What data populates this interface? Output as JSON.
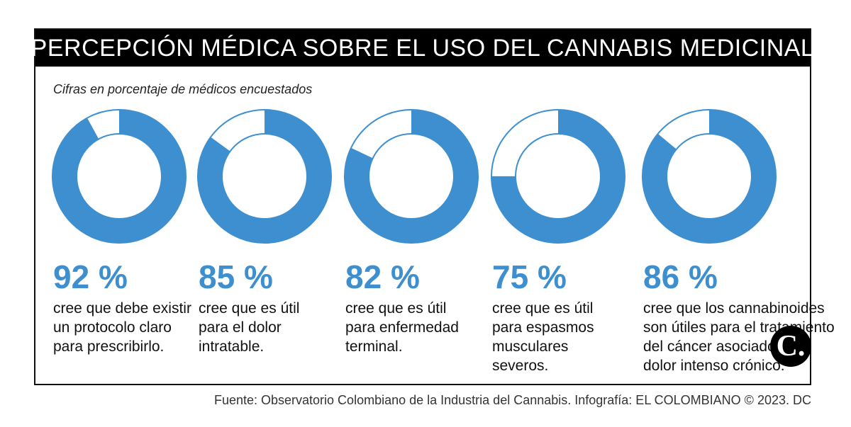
{
  "title": "PERCEPCIÓN MÉDICA SOBRE EL USO DEL CANNABIS MEDICINAL",
  "subtitle": "Cifras en porcentaje de médicos encuestados",
  "source": "Fuente: Observatorio Colombiano de la Industria del Cannabis. Infografía: EL COLOMBIANO © 2023. DC",
  "logo_text": "C.",
  "colors": {
    "ring": "#3d8fcf",
    "remainder": "#ffffff",
    "title_bg": "#000000"
  },
  "chart_data": {
    "type": "pie",
    "variant": "donut",
    "categories": [
      "cree que debe existir un protocolo claro para prescribirlo.",
      "cree que es útil para el dolor intratable.",
      "cree que es útil para enfermedad terminal.",
      "cree que es útil para espasmos musculares severos.",
      "cree que los cannabinoides son útiles para el tratamiento del cáncer asociado con dolor intenso crónico."
    ],
    "values": [
      92,
      85,
      82,
      75,
      86
    ],
    "labels": [
      "92 %",
      "85 %",
      "82 %",
      "75 %",
      "86 %"
    ],
    "descriptions": [
      [
        "cree que debe existir",
        "un protocolo claro",
        "para prescribirlo."
      ],
      [
        "cree que es útil",
        "para el dolor",
        "intratable."
      ],
      [
        "cree que es útil",
        "para enfermedad",
        "terminal."
      ],
      [
        "cree que es útil",
        "para espasmos",
        "musculares",
        "severos."
      ],
      [
        "cree que los cannabinoides",
        "son útiles para el tratamiento",
        "del cáncer asociado con",
        "dolor intenso crónico."
      ]
    ]
  }
}
